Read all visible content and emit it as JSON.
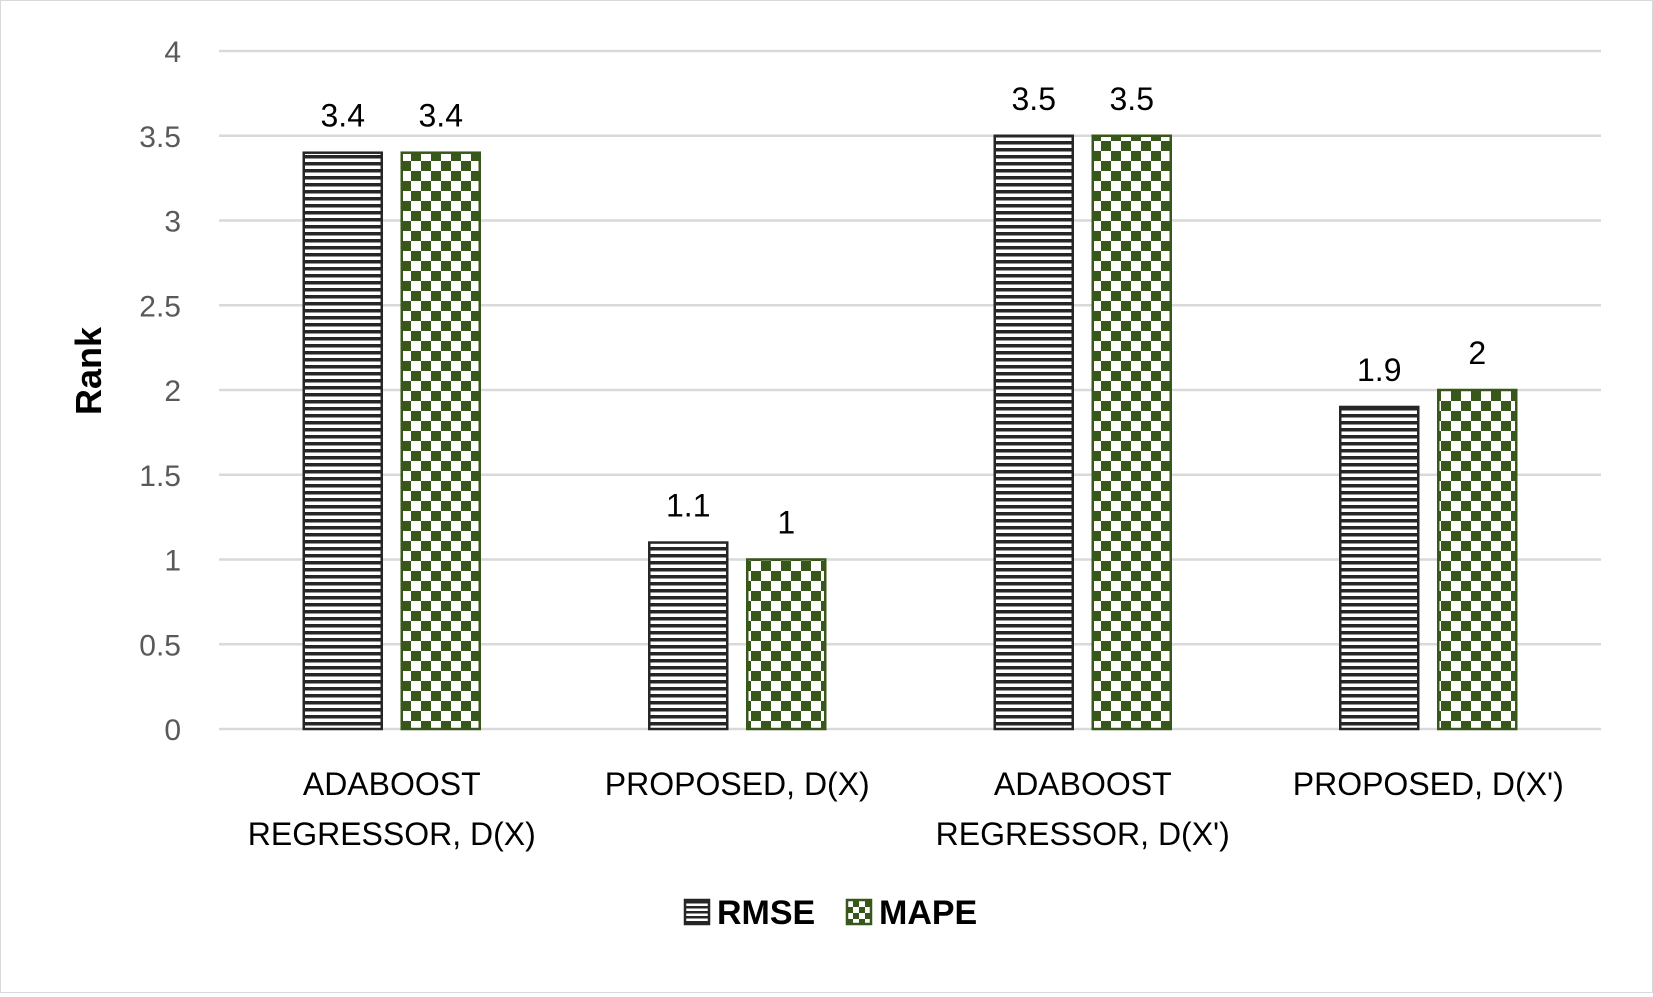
{
  "chart_data": {
    "type": "bar",
    "categories": [
      [
        "ADABOOST",
        "REGRESSOR, D(X)"
      ],
      [
        "PROPOSED,  D(X)"
      ],
      [
        "ADABOOST",
        "REGRESSOR, D(X')"
      ],
      [
        "PROPOSED, D(X')"
      ]
    ],
    "series": [
      {
        "name": "RMSE",
        "values": [
          3.4,
          1.1,
          3.5,
          1.9
        ],
        "color": "#262626",
        "pattern": "horizontal-stripes"
      },
      {
        "name": "MAPE",
        "values": [
          3.4,
          1,
          3.5,
          2
        ],
        "color": "#38571a",
        "pattern": "checkerboard"
      }
    ],
    "ylabel": "Rank",
    "xlabel": "",
    "ylim": [
      0,
      4
    ],
    "yticks": [
      "0",
      "0.5",
      "1",
      "1.5",
      "2",
      "2.5",
      "3",
      "3.5",
      "4"
    ],
    "grid": true,
    "legend_position": "bottom-center"
  }
}
